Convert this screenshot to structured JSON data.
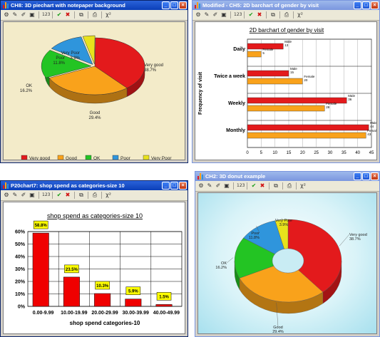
{
  "toolbar_icons": [
    "options-icon",
    "check-icon",
    "cross-icon",
    "copy-icon",
    "print-icon",
    "chi-square-icon"
  ],
  "windows": {
    "w1": {
      "title": "CH8: 3D piechart with notepaper background"
    },
    "w2": {
      "title": "Modified - CH5: 2D barchart of gender by visit"
    },
    "w3": {
      "title": "P20chart7: shop spend as categories-size 10"
    },
    "w4": {
      "title": "CH2: 3D donut example"
    }
  },
  "chart_data": [
    {
      "type": "pie",
      "title": "",
      "labels": [
        "Very good",
        "Good",
        "OK",
        "Poor",
        "Very Poor"
      ],
      "values": [
        38.7,
        29.4,
        16.2,
        11.8,
        3.9
      ],
      "value_labels": [
        "38.7%",
        "29.4%",
        "16.2%",
        "11.8%",
        "3.9%"
      ],
      "colors": [
        "#e31a1c",
        "#f9a21b",
        "#23c423",
        "#2f95dc",
        "#e8e21c"
      ],
      "legend": [
        "Very good",
        "Good",
        "OK",
        "Poor",
        "Very Poor"
      ],
      "legend_position": "bottom"
    },
    {
      "type": "bar",
      "orientation": "horizontal",
      "title": "2D barchart of gender by visit",
      "ylabel": "Frequency of visit",
      "categories": [
        "Daily",
        "Twice a week",
        "Weekly",
        "Monthly"
      ],
      "series": [
        {
          "name": "Male",
          "values": [
            13,
            15,
            36,
            44
          ],
          "color": "#e31a1c"
        },
        {
          "name": "Female",
          "values": [
            5,
            20,
            28,
            43
          ],
          "color": "#f9a21b"
        }
      ],
      "xlim": [
        0,
        45
      ],
      "xticks": [
        "0",
        "5",
        "10",
        "15",
        "20",
        "25",
        "30",
        "35",
        "40",
        "45"
      ],
      "grid": true
    },
    {
      "type": "bar",
      "title": "shop spend as categories-size 10",
      "xlabel": "shop spend categories-10",
      "categories": [
        "0.00-9.99",
        "10.00-19.99",
        "20.00-29.99",
        "30.00-39.99",
        "40.00-49.99"
      ],
      "values": [
        58.8,
        23.5,
        10.3,
        5.9,
        1.5
      ],
      "value_labels": [
        "58.8%",
        "23.5%",
        "10.3%",
        "5.9%",
        "1.5%"
      ],
      "ylim": [
        0,
        60
      ],
      "yticks": [
        "0%",
        "10%",
        "20%",
        "30%",
        "40%",
        "50%",
        "60%"
      ],
      "grid": true,
      "color": "#f00000"
    },
    {
      "type": "pie",
      "subtype": "donut",
      "labels": [
        "Very good",
        "Good",
        "OK",
        "Poor",
        "Very Poor"
      ],
      "values": [
        38.7,
        29.4,
        16.2,
        11.8,
        3.9
      ],
      "value_labels": [
        "38.7%",
        "29.4%",
        "16.2%",
        "11.8%",
        "3.9%"
      ],
      "colors": [
        "#e31a1c",
        "#f9a21b",
        "#23c423",
        "#2f95dc",
        "#e8e21c"
      ]
    }
  ]
}
